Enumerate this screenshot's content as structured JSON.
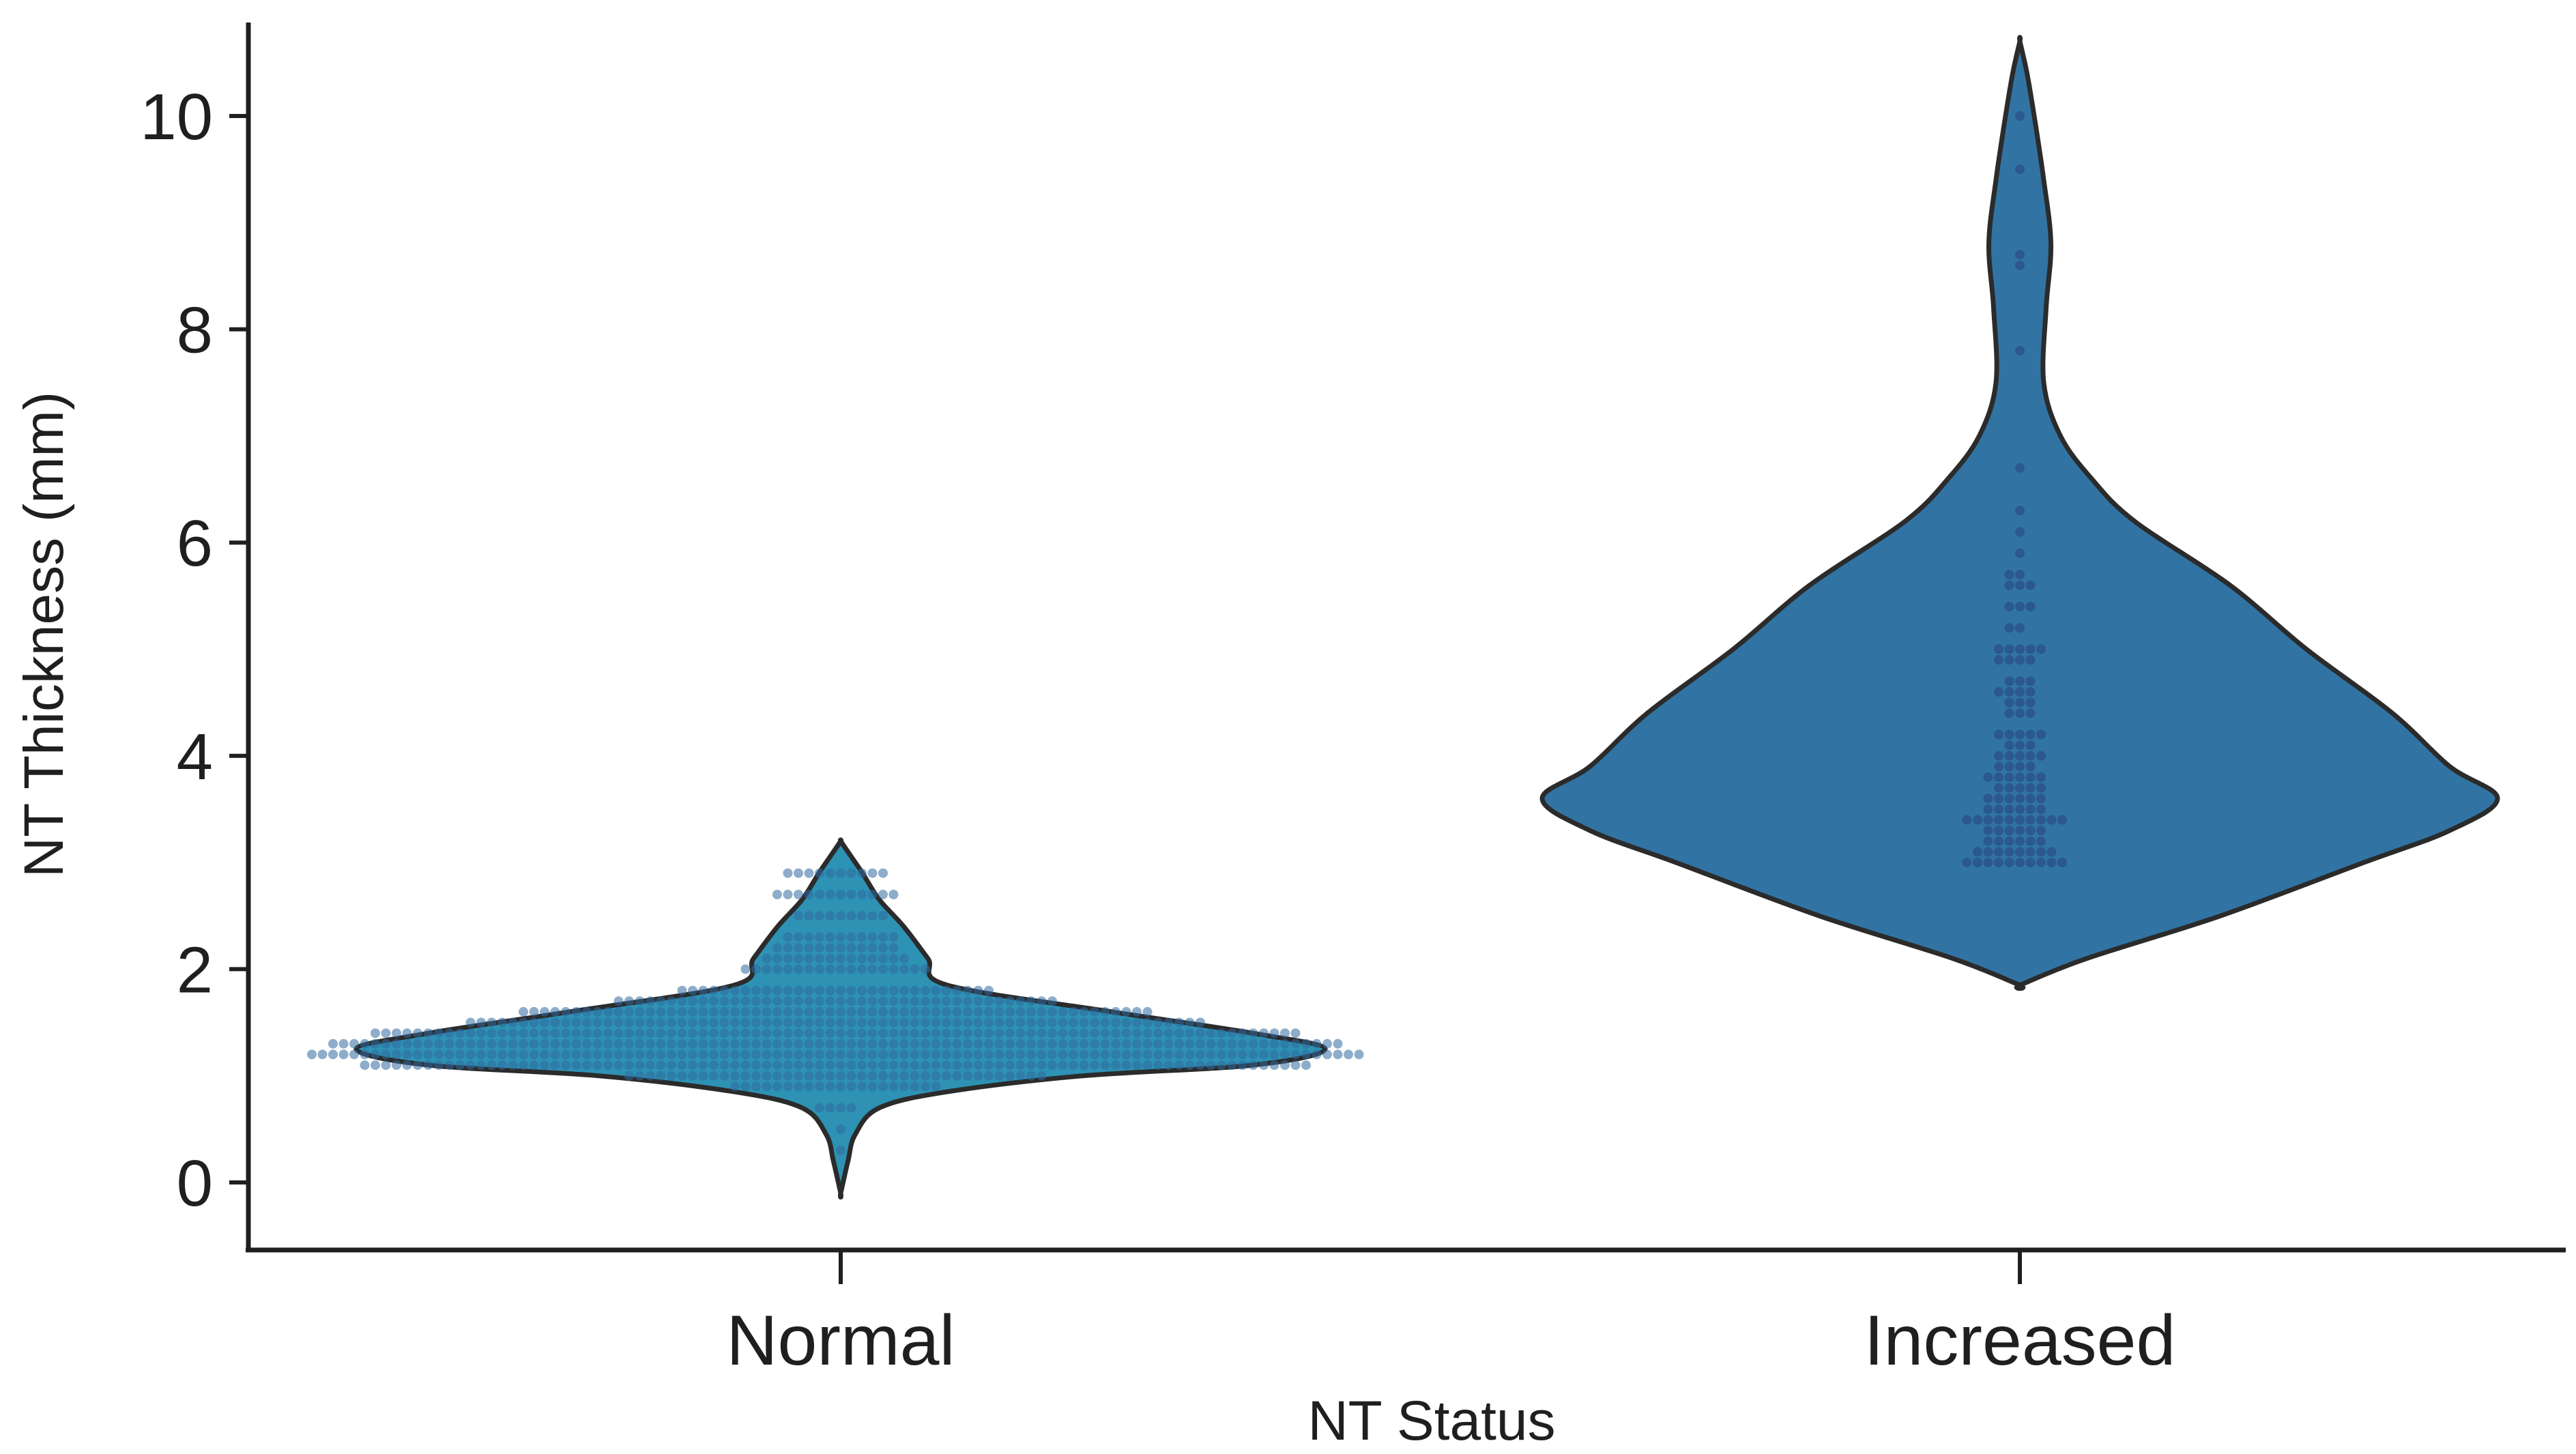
{
  "chart_data": {
    "type": "violin",
    "title": "",
    "xlabel": "NT Status",
    "ylabel": "NT Thickness (mm)",
    "categories": [
      "Normal",
      "Increased"
    ],
    "ylim": [
      -0.6,
      10.9
    ],
    "yticks": [
      0,
      2,
      4,
      6,
      8,
      10
    ],
    "colors": {
      "violin": "#3174a4",
      "normal_fill": "#2e92b4",
      "points": "#2a4f86",
      "outline": "#2b2b2b",
      "axis": "#1f1f1f"
    },
    "series": [
      {
        "name": "Normal",
        "range": [
          -0.1,
          3.2
        ],
        "density_profile": [
          {
            "y": -0.1,
            "w": 0.0
          },
          {
            "y": 0.2,
            "w": 0.015
          },
          {
            "y": 0.45,
            "w": 0.03
          },
          {
            "y": 0.7,
            "w": 0.08
          },
          {
            "y": 0.85,
            "w": 0.22
          },
          {
            "y": 1.0,
            "w": 0.5
          },
          {
            "y": 1.1,
            "w": 0.85
          },
          {
            "y": 1.25,
            "w": 1.0
          },
          {
            "y": 1.4,
            "w": 0.85
          },
          {
            "y": 1.6,
            "w": 0.56
          },
          {
            "y": 1.85,
            "w": 0.22
          },
          {
            "y": 2.1,
            "w": 0.18
          },
          {
            "y": 2.4,
            "w": 0.13
          },
          {
            "y": 2.65,
            "w": 0.08
          },
          {
            "y": 2.9,
            "w": 0.045
          },
          {
            "y": 3.1,
            "w": 0.015
          },
          {
            "y": 3.2,
            "w": 0.0
          }
        ],
        "points": [
          {
            "y": 1.1,
            "n": 90
          },
          {
            "y": 1.2,
            "n": 100
          },
          {
            "y": 1.3,
            "n": 96
          },
          {
            "y": 1.4,
            "n": 88
          },
          {
            "y": 1.5,
            "n": 70
          },
          {
            "y": 1.6,
            "n": 60
          },
          {
            "y": 1.7,
            "n": 42
          },
          {
            "y": 1.8,
            "n": 30
          },
          {
            "y": 0.9,
            "n": 20
          },
          {
            "y": 1.0,
            "n": 40
          },
          {
            "y": 2.0,
            "n": 18
          },
          {
            "y": 2.1,
            "n": 14
          },
          {
            "y": 2.2,
            "n": 12
          },
          {
            "y": 2.3,
            "n": 11
          },
          {
            "y": 2.5,
            "n": 9
          },
          {
            "y": 2.7,
            "n": 12
          },
          {
            "y": 2.9,
            "n": 10
          },
          {
            "y": 0.7,
            "n": 4
          },
          {
            "y": 0.5,
            "n": 1
          },
          {
            "y": 0.3,
            "n": 1
          }
        ]
      },
      {
        "name": "Increased",
        "range": [
          1.85,
          10.7
        ],
        "density_profile": [
          {
            "y": 1.85,
            "w": 0.0
          },
          {
            "y": 2.1,
            "w": 0.14
          },
          {
            "y": 2.5,
            "w": 0.42
          },
          {
            "y": 3.0,
            "w": 0.72
          },
          {
            "y": 3.3,
            "w": 0.9
          },
          {
            "y": 3.6,
            "w": 1.0
          },
          {
            "y": 3.9,
            "w": 0.9
          },
          {
            "y": 4.4,
            "w": 0.78
          },
          {
            "y": 5.0,
            "w": 0.6
          },
          {
            "y": 5.6,
            "w": 0.44
          },
          {
            "y": 6.2,
            "w": 0.24
          },
          {
            "y": 6.6,
            "w": 0.15
          },
          {
            "y": 7.0,
            "w": 0.085
          },
          {
            "y": 7.5,
            "w": 0.05
          },
          {
            "y": 8.2,
            "w": 0.055
          },
          {
            "y": 8.8,
            "w": 0.065
          },
          {
            "y": 9.4,
            "w": 0.05
          },
          {
            "y": 10.0,
            "w": 0.03
          },
          {
            "y": 10.4,
            "w": 0.015
          },
          {
            "y": 10.7,
            "w": 0.0
          }
        ],
        "points": [
          {
            "y": 3.0,
            "n": 10
          },
          {
            "y": 3.1,
            "n": 8
          },
          {
            "y": 3.2,
            "n": 6
          },
          {
            "y": 3.3,
            "n": 6
          },
          {
            "y": 3.4,
            "n": 10
          },
          {
            "y": 3.5,
            "n": 6
          },
          {
            "y": 3.6,
            "n": 6
          },
          {
            "y": 3.7,
            "n": 5
          },
          {
            "y": 3.8,
            "n": 6
          },
          {
            "y": 3.9,
            "n": 4
          },
          {
            "y": 4.0,
            "n": 5
          },
          {
            "y": 4.1,
            "n": 3
          },
          {
            "y": 4.2,
            "n": 5
          },
          {
            "y": 4.4,
            "n": 3
          },
          {
            "y": 4.5,
            "n": 3
          },
          {
            "y": 4.6,
            "n": 4
          },
          {
            "y": 4.7,
            "n": 3
          },
          {
            "y": 4.9,
            "n": 4
          },
          {
            "y": 5.0,
            "n": 5
          },
          {
            "y": 5.2,
            "n": 2
          },
          {
            "y": 5.4,
            "n": 3
          },
          {
            "y": 5.6,
            "n": 3
          },
          {
            "y": 5.7,
            "n": 2
          },
          {
            "y": 5.9,
            "n": 1
          },
          {
            "y": 6.1,
            "n": 1
          },
          {
            "y": 6.3,
            "n": 1
          },
          {
            "y": 6.7,
            "n": 1
          },
          {
            "y": 7.8,
            "n": 1
          },
          {
            "y": 8.6,
            "n": 1
          },
          {
            "y": 8.7,
            "n": 1
          },
          {
            "y": 9.5,
            "n": 1
          },
          {
            "y": 10.0,
            "n": 1
          }
        ]
      }
    ]
  }
}
